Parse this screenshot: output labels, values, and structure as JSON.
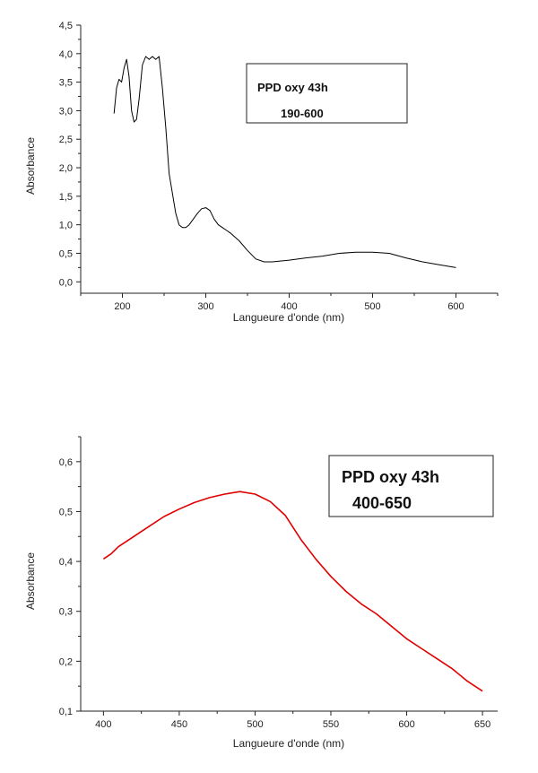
{
  "charts": [
    {
      "legend_line1": "PPD oxy 43h",
      "legend_line2": "190-600",
      "xlabel": "Langueure d'onde (nm)",
      "ylabel": "Absorbance",
      "line_color": "#000000"
    },
    {
      "legend_line1": "PPD oxy 43h",
      "legend_line2": "400-650",
      "xlabel": "Langueure d'onde (nm)",
      "ylabel": "Absorbance",
      "line_color": "#e00000"
    }
  ],
  "chart_data": [
    {
      "type": "line",
      "title": "",
      "xlabel": "Langueure d'onde (nm)",
      "ylabel": "Absorbance",
      "xlim": [
        150,
        650
      ],
      "ylim": [
        -0.2,
        4.5
      ],
      "xticks": [
        200,
        300,
        400,
        500,
        600
      ],
      "xtick_labels": [
        "200",
        "300",
        "400",
        "500",
        "600"
      ],
      "yticks": [
        0,
        0.5,
        1,
        1.5,
        2,
        2.5,
        3,
        3.5,
        4,
        4.5
      ],
      "ytick_labels": [
        "0,0",
        "0,5",
        "1,0",
        "1,5",
        "2,0",
        "2,5",
        "3,0",
        "3,5",
        "4,0",
        "4,5"
      ],
      "grid": false,
      "legend_position": "top-right",
      "series": [
        {
          "x": [
            190,
            193,
            196,
            199,
            202,
            205,
            208,
            211,
            214,
            217,
            220,
            224,
            228,
            232,
            236,
            240,
            244,
            248,
            252,
            256,
            260,
            264,
            268,
            272,
            276,
            280,
            285,
            290,
            295,
            300,
            305,
            310,
            315,
            320,
            325,
            330,
            340,
            350,
            360,
            370,
            380,
            400,
            420,
            440,
            460,
            480,
            500,
            520,
            540,
            560,
            580,
            600
          ],
          "y": [
            2.95,
            3.4,
            3.55,
            3.5,
            3.75,
            3.9,
            3.6,
            3.0,
            2.8,
            2.85,
            3.2,
            3.8,
            3.95,
            3.9,
            3.95,
            3.9,
            3.95,
            3.4,
            2.7,
            1.9,
            1.55,
            1.2,
            1.0,
            0.95,
            0.95,
            1.0,
            1.1,
            1.2,
            1.28,
            1.3,
            1.25,
            1.1,
            1.0,
            0.95,
            0.9,
            0.85,
            0.72,
            0.55,
            0.4,
            0.35,
            0.35,
            0.38,
            0.42,
            0.45,
            0.5,
            0.52,
            0.52,
            0.5,
            0.42,
            0.35,
            0.3,
            0.25
          ]
        }
      ]
    },
    {
      "type": "line",
      "title": "",
      "xlabel": "Langueure d'onde (nm)",
      "ylabel": "Absorbance",
      "xlim": [
        385,
        660
      ],
      "ylim": [
        0.1,
        0.65
      ],
      "xticks": [
        400,
        450,
        500,
        550,
        600,
        650
      ],
      "xtick_labels": [
        "400",
        "450",
        "500",
        "550",
        "600",
        "650"
      ],
      "yticks": [
        0.1,
        0.2,
        0.3,
        0.4,
        0.5,
        0.6
      ],
      "ytick_labels": [
        "0,1",
        "0,2",
        "0,3",
        "0,4",
        "0,5",
        "0,6"
      ],
      "grid": false,
      "legend_position": "top-right",
      "series": [
        {
          "x": [
            400,
            405,
            410,
            420,
            430,
            440,
            450,
            460,
            470,
            480,
            490,
            500,
            510,
            520,
            530,
            540,
            550,
            560,
            570,
            580,
            590,
            600,
            610,
            620,
            630,
            640,
            650
          ],
          "y": [
            0.405,
            0.415,
            0.43,
            0.45,
            0.47,
            0.49,
            0.505,
            0.518,
            0.528,
            0.535,
            0.54,
            0.535,
            0.52,
            0.492,
            0.445,
            0.405,
            0.37,
            0.34,
            0.315,
            0.295,
            0.27,
            0.245,
            0.225,
            0.205,
            0.185,
            0.16,
            0.14
          ]
        }
      ]
    }
  ]
}
